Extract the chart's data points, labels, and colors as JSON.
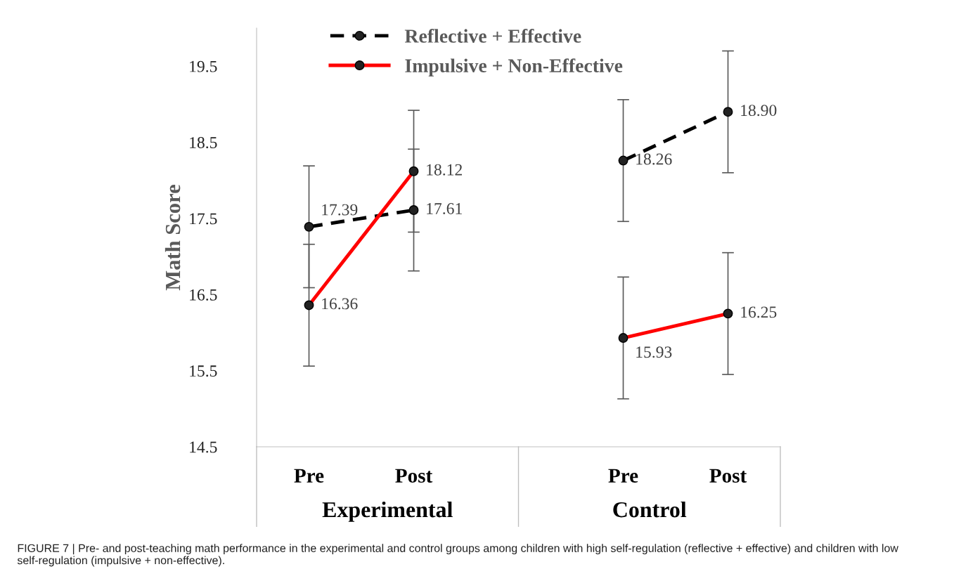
{
  "chart_data": {
    "type": "line",
    "ylabel": "Math Score",
    "categories": [
      "Pre",
      "Post",
      null,
      "Pre",
      "Post"
    ],
    "series": [
      {
        "name": "Reflective + Effective",
        "color": "#000000",
        "line_style": "dashed",
        "values": [
          17.39,
          17.61,
          null,
          18.26,
          18.9
        ],
        "value_labels": [
          "17.39",
          "17.61",
          null,
          "18.26",
          "18.90"
        ],
        "errors": [
          0.8,
          0.8,
          null,
          0.8,
          0.8
        ]
      },
      {
        "name": "Impulsive + Non-Effective",
        "color": "#ff0000",
        "line_style": "solid",
        "values": [
          16.36,
          18.12,
          null,
          15.93,
          16.25
        ],
        "value_labels": [
          "16.36",
          "18.12",
          null,
          "15.93",
          "16.25"
        ],
        "errors": [
          0.8,
          0.8,
          null,
          0.8,
          0.8
        ]
      }
    ],
    "ylim": [
      14.5,
      20.0
    ],
    "yticks": [
      14.5,
      15.5,
      16.5,
      17.5,
      18.5,
      19.5
    ],
    "marker": "circle",
    "data_labels": true,
    "legend": "top",
    "grid": false,
    "annotations": [
      "Experimental",
      "Control",
      "FIGURE 7 | Pre- and post-teaching math performance in the experimental and control groups among children with high self-regulation (reflective + effective) and children with low self-regulation (impulsive + non-effective)."
    ]
  }
}
